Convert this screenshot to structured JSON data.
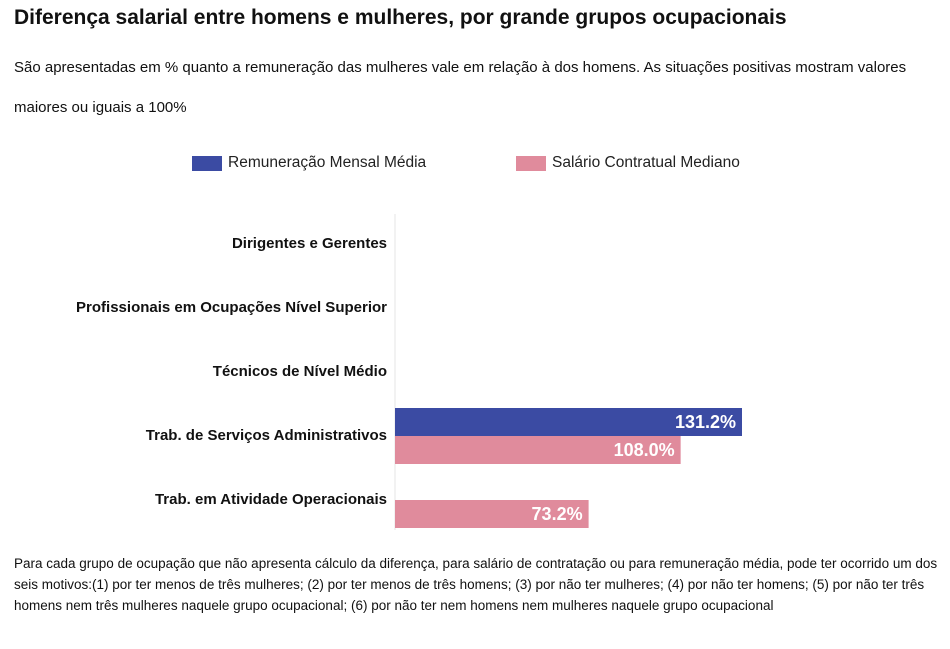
{
  "title": "Diferença salarial entre homens e mulheres, por grande grupos ocupacionais",
  "subtitle": "São apresentadas em % quanto a remuneração das mulheres vale em relação à dos homens. As situações positivas mostram valores maiores ou iguais a 100%",
  "footnote": "Para cada grupo de ocupação que não apresenta cálculo da diferença, para salário de contratação ou para remuneração média, pode ter ocorrido um dos seis motivos:(1) por ter menos de três mulheres; (2) por ter menos de três homens; (3) por não ter mulheres; (4) por não ter homens; (5) por não ter três homens nem três mulheres naquele grupo ocupacional; (6) por não ter nem homens nem mulheres naquele grupo ocupacional",
  "chart_data": {
    "type": "bar",
    "orientation": "horizontal",
    "title": "Diferença salarial entre homens e mulheres, por grande grupos ocupacionais",
    "categories": [
      "Dirigentes e Gerentes",
      "Profissionais em Ocupações Nível Superior",
      "Técnicos de Nível Médio",
      "Trab. de Serviços Administrativos",
      "Trab. em Atividade Operacionais"
    ],
    "series": [
      {
        "name": "Remuneração Mensal Média",
        "color": "#3b4ba3",
        "values": [
          null,
          null,
          null,
          131.2,
          null
        ],
        "labels": [
          null,
          null,
          null,
          "131.2%",
          null
        ]
      },
      {
        "name": "Salário Contratual Mediano",
        "color": "#e08b9c",
        "values": [
          null,
          null,
          null,
          108.0,
          73.2
        ],
        "labels": [
          null,
          null,
          null,
          "108.0%",
          "73.2%"
        ]
      }
    ],
    "legend_position": "top",
    "xlabel": "",
    "ylabel": "",
    "xlim": [
      0,
      135
    ],
    "grid": false
  }
}
